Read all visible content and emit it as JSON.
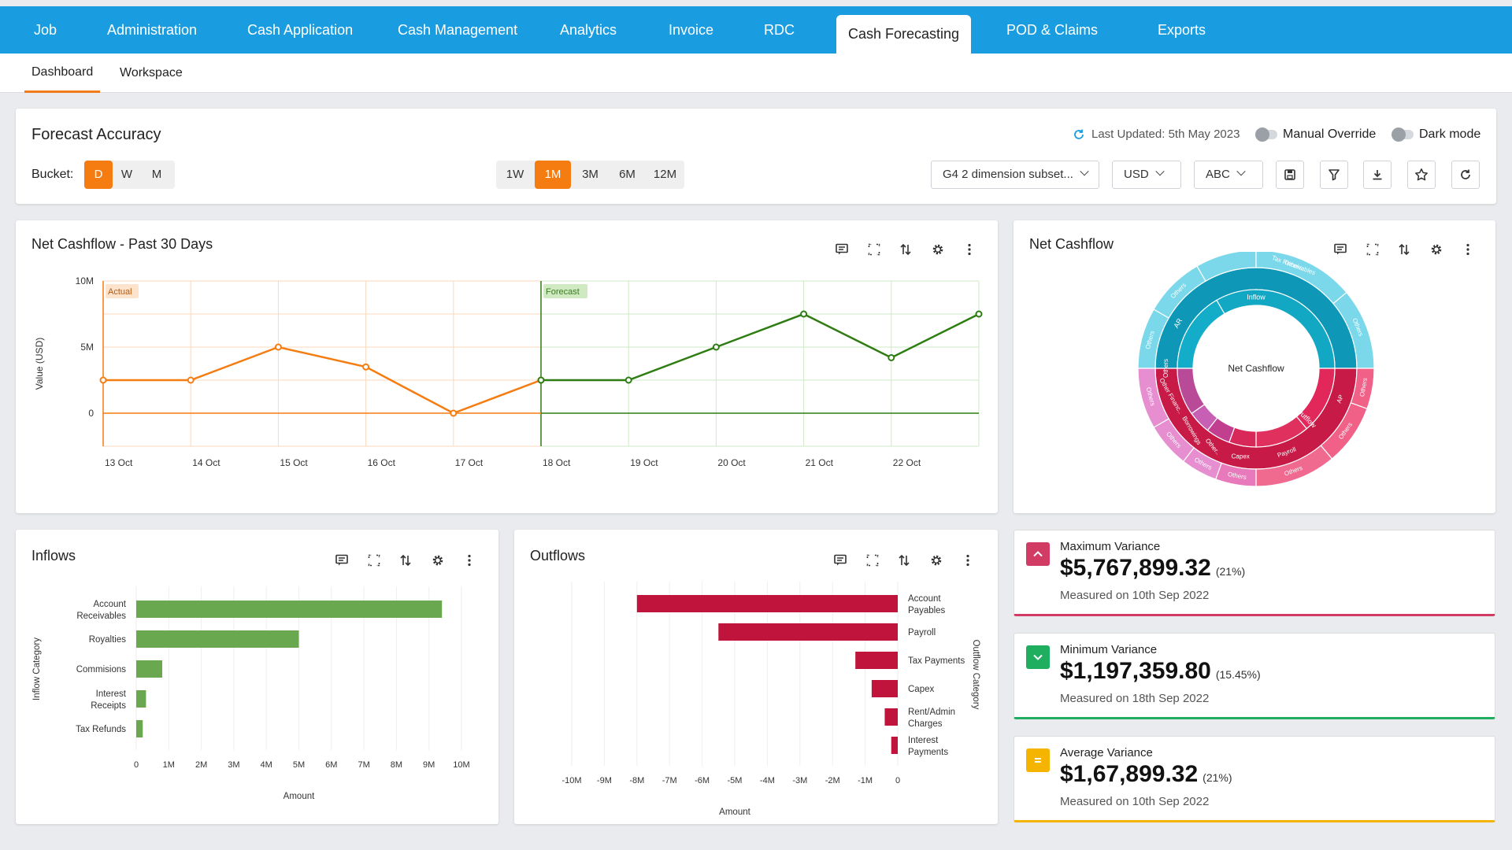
{
  "colors": {
    "nav": "#1a9de0",
    "accent": "#f57c10",
    "actual": "#f57c10",
    "forecast": "#2e7d12",
    "inflow_bar": "#6aa84f",
    "outflow_bar": "#c0143c",
    "max": "#d23c64",
    "min": "#1fae5f",
    "avg": "#f5b400"
  },
  "nav": {
    "tabs": [
      {
        "label": "Job"
      },
      {
        "label": "Administration"
      },
      {
        "label": "Cash Application"
      },
      {
        "label": "Cash Management"
      },
      {
        "label": "Analytics"
      },
      {
        "label": "Invoice"
      },
      {
        "label": "RDC"
      },
      {
        "label": "Cash Forecasting"
      },
      {
        "label": "POD & Claims"
      },
      {
        "label": "Exports"
      }
    ],
    "subtabs": [
      {
        "label": "Dashboard"
      },
      {
        "label": "Workspace"
      }
    ]
  },
  "header": {
    "title": "Forecast Accuracy",
    "bucket_label": "Bucket:",
    "bucket_options": [
      "D",
      "W",
      "M"
    ],
    "bucket_selected": "D",
    "range_options": [
      "1W",
      "1M",
      "3M",
      "6M",
      "12M"
    ],
    "range_selected": "1M",
    "last_updated": "Last Updated: 5th May 2023",
    "manual_override": "Manual Override",
    "dark_mode": "Dark mode",
    "subset": "G4 2 dimension subset...",
    "currency": "USD",
    "entity": "ABC",
    "icons": [
      "save-icon",
      "filter-icon",
      "download-icon",
      "star-icon",
      "refresh-icon"
    ]
  },
  "net_cashflow_line": {
    "title": "Net Cashflow - Past 30 Days",
    "actual_tag": "Actual",
    "forecast_tag": "Forecast"
  },
  "sunburst": {
    "title": "Net Cashflow",
    "center": "Net Cashflow",
    "inner": [
      "Inflow",
      "Outflow"
    ],
    "middle": [
      "AR",
      "Others",
      "Other Financ..",
      "Borrowings",
      "Other..",
      "Capex",
      "Payroll",
      "AP"
    ],
    "outer": [
      "Others",
      "Tax Receivables",
      "Others",
      "Others",
      "Others",
      "Others",
      "Others",
      "Others",
      "Others",
      "Others",
      "Others",
      "Others"
    ]
  },
  "inflows": {
    "title": "Inflows"
  },
  "outflows": {
    "title": "Outflows"
  },
  "variance": {
    "max": {
      "label": "Maximum Variance",
      "value": "$5,767,899.32",
      "pct": "(21%)",
      "note": "Measured on 10th Sep 2022"
    },
    "min": {
      "label": "Minimum Variance",
      "value": "$1,197,359.80",
      "pct": "(15.45%)",
      "note": "Measured on 18th Sep 2022"
    },
    "avg": {
      "label": "Average Variance",
      "value": "$1,67,899.32",
      "pct": "(21%)",
      "note": "Measured on 10th Sep 2022"
    }
  },
  "chart_data": [
    {
      "type": "line",
      "title": "Net Cashflow - Past 30 Days",
      "ylabel": "Value (USD)",
      "xlabel": "",
      "ylim": [
        -2.5,
        10
      ],
      "yticks": [
        0,
        5,
        10
      ],
      "ytick_labels": [
        "0",
        "5M",
        "10M"
      ],
      "categories": [
        "13 Oct",
        "14 Oct",
        "15 Oct",
        "16 Oct",
        "17 Oct",
        "18 Oct",
        "19 Oct",
        "20 Oct",
        "21 Oct",
        "22 Oct"
      ],
      "series": [
        {
          "name": "Actual",
          "x": [
            0,
            1,
            2,
            3,
            4,
            5
          ],
          "values": [
            2.5,
            2.5,
            5.0,
            3.5,
            0,
            2.5
          ]
        },
        {
          "name": "Forecast",
          "x": [
            5,
            6,
            7,
            8,
            9,
            10
          ],
          "values": [
            2.5,
            2.5,
            5.0,
            7.5,
            4.2,
            7.5
          ]
        }
      ],
      "forecast_start": "18 Oct"
    },
    {
      "type": "bar",
      "orientation": "horizontal",
      "title": "Inflows",
      "xlabel": "Amount",
      "ylabel": "Inflow Category",
      "categories": [
        "Account Receivables",
        "Royalties",
        "Commisions",
        "Interest Receipts",
        "Tax Refunds"
      ],
      "values": [
        9.4,
        5.0,
        0.8,
        0.3,
        0.2
      ],
      "xlim": [
        0,
        10
      ],
      "xticks": [
        "0",
        "1M",
        "2M",
        "3M",
        "4M",
        "5M",
        "6M",
        "7M",
        "8M",
        "9M",
        "10M"
      ]
    },
    {
      "type": "bar",
      "orientation": "horizontal",
      "title": "Outflows",
      "xlabel": "Amount",
      "ylabel": "Outflow Category",
      "categories": [
        "Account Payables",
        "Payroll",
        "Tax Payments",
        "Capex",
        "Rent/Admin Charges",
        "Interest Payments"
      ],
      "values": [
        -8.0,
        -5.5,
        -1.3,
        -0.8,
        -0.4,
        -0.2
      ],
      "xlim": [
        -10,
        0
      ],
      "xticks": [
        "-10M",
        "-9M",
        "-8M",
        "-7M",
        "-6M",
        "-5M",
        "-4M",
        "-3M",
        "-2M",
        "-1M",
        "0"
      ]
    }
  ]
}
